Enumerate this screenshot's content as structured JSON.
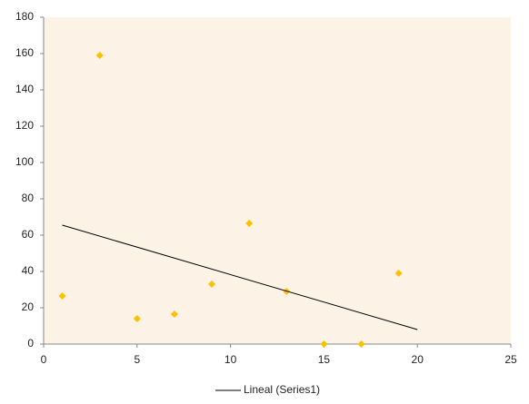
{
  "chart_data": {
    "type": "scatter",
    "series": [
      {
        "marker": "diamond",
        "color": "#FFC000",
        "x": [
          1,
          3,
          5,
          7,
          9,
          11,
          13,
          15,
          17,
          19
        ],
        "values": [
          26.5,
          159,
          14,
          16.5,
          33,
          66.5,
          29,
          0,
          0,
          39
        ]
      },
      {
        "name": "Lineal (Series1)",
        "marker": "line",
        "color": "#000000",
        "x": [
          1,
          20
        ],
        "values": [
          65.5,
          8
        ]
      }
    ],
    "xlim": [
      0,
      25
    ],
    "xticks": [
      0,
      5,
      10,
      15,
      20,
      25
    ],
    "ylim": [
      0,
      180
    ],
    "yticks": [
      0,
      20,
      40,
      60,
      80,
      100,
      120,
      140,
      160,
      180
    ],
    "grid": false,
    "legend": "bottom",
    "plot_background": "#FDF2E6"
  }
}
